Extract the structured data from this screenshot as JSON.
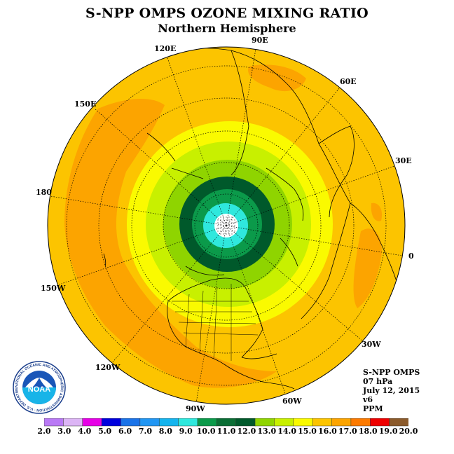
{
  "title": "S-NPP OMPS OZONE MIXING RATIO",
  "subtitle": "Northern Hemisphere",
  "info": {
    "instrument": "S-NPP OMPS",
    "pressure": "07 hPa",
    "date": "July 12, 2015",
    "version": "v6",
    "units": "PPM"
  },
  "longitude_labels": [
    "90E",
    "60E",
    "30E",
    "0",
    "30W",
    "60W",
    "90W",
    "120W",
    "150W",
    "180",
    "150E",
    "120E"
  ],
  "colorbar": {
    "ticks": [
      "2.0",
      "3.0",
      "4.0",
      "5.0",
      "6.0",
      "7.0",
      "8.0",
      "9.0",
      "10.0",
      "11.0",
      "12.0",
      "13.0",
      "14.0",
      "15.0",
      "16.0",
      "17.0",
      "18.0",
      "19.0",
      "20.0"
    ],
    "colors": [
      "#b979f5",
      "#dcb5f5",
      "#e600e6",
      "#0000dd",
      "#1a73e8",
      "#2196f3",
      "#15b4ee",
      "#2fe8dd",
      "#0b9a4a",
      "#0b6e35",
      "#00592b",
      "#8fd400",
      "#c8f000",
      "#fafa00",
      "#fcc400",
      "#fca400",
      "#fc7a00",
      "#ee0000",
      "#8b5a2b"
    ]
  },
  "logo": {
    "text": "NOAA",
    "ring_text": "NATIONAL OCEANIC AND ATMOSPHERIC ADMINISTRATION · U.S. DEPARTMENT OF COMMERCE"
  }
}
